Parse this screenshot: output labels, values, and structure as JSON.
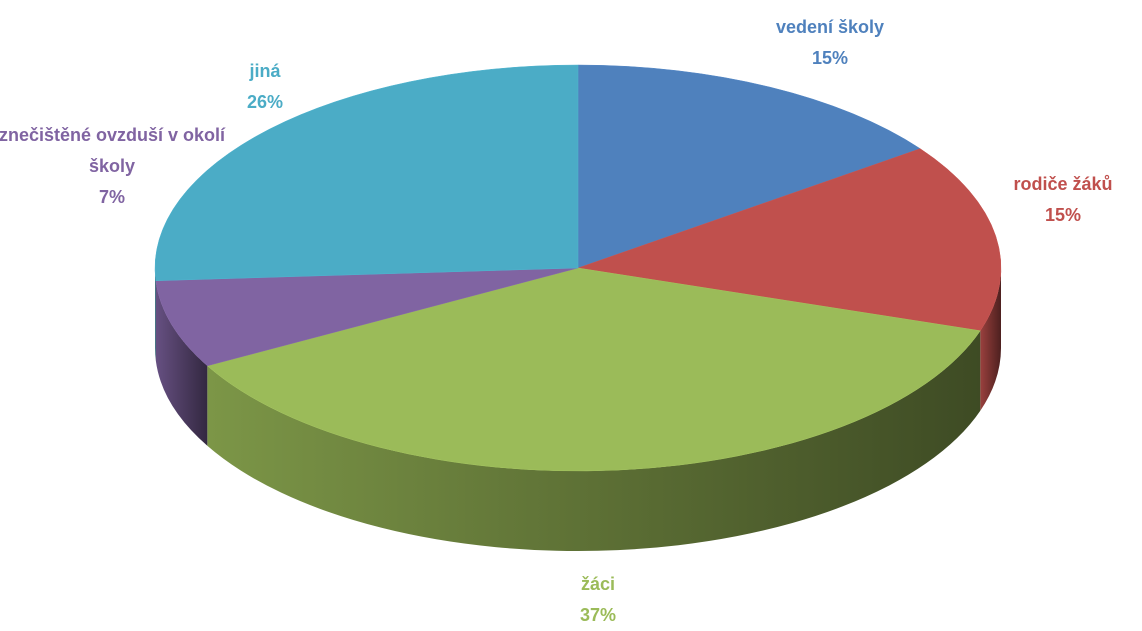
{
  "chart_data": {
    "type": "pie",
    "categories": [
      "vedení školy",
      "rodiče žáků",
      "žáci",
      "znečištěné ovzduší v okolí školy",
      "jiná"
    ],
    "values": [
      15,
      15,
      37,
      7,
      26
    ],
    "value_labels": [
      "15%",
      "15%",
      "37%",
      "7%",
      "26%"
    ],
    "colors": [
      "#4f81bd",
      "#c0504d",
      "#9bbb59",
      "#8064a2",
      "#4bacc6"
    ]
  }
}
